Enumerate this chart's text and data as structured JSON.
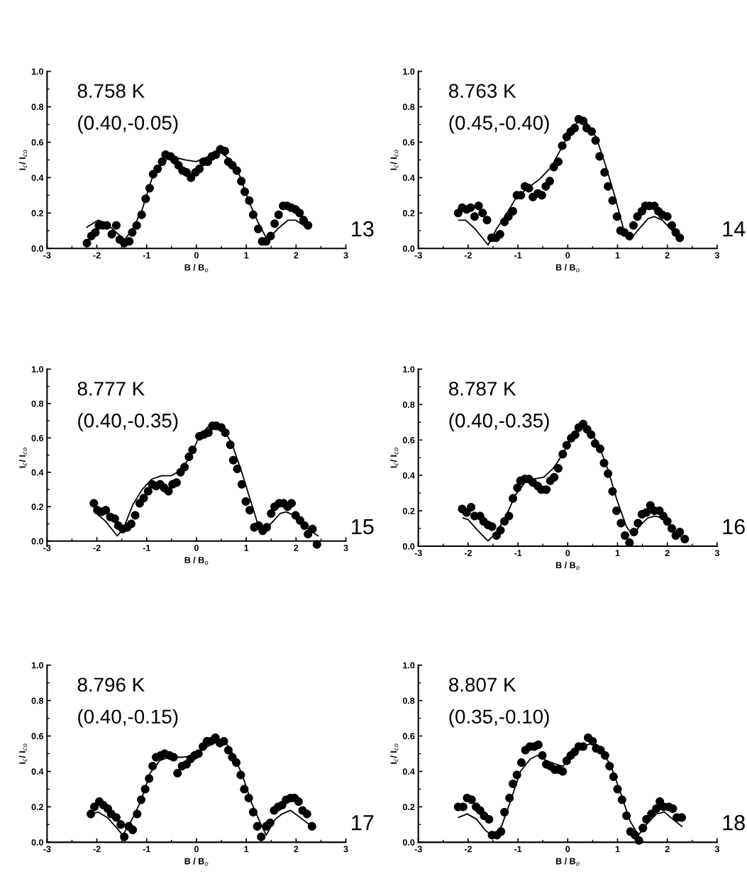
{
  "chart_data": [
    {
      "type": "scatter",
      "title": "8.758 K",
      "subtitle": "(0.40,-0.05)",
      "annotations": [
        "13"
      ],
      "xlabel": "B / B$_{o}$",
      "ylabel": "I$_{c}$/ I$_{co}$",
      "xlim": [
        -3,
        3
      ],
      "xticks": [
        -3,
        -2,
        -1,
        0,
        1,
        2,
        3
      ],
      "ylim": [
        0,
        1.0
      ],
      "yticks": [
        {
          "value": 0,
          "label": "0.0"
        },
        {
          "value": 0.2,
          "label": "0.2"
        },
        {
          "value": 0.4,
          "label": "0.4"
        },
        {
          "value": 0.6,
          "label": "0.6"
        },
        {
          "value": 0.8,
          "label": "0.8"
        },
        {
          "value": 1.0,
          "label": "1.0"
        }
      ],
      "grid": false,
      "legend": false,
      "series": [
        {
          "marker": "circle",
          "color": "#000000",
          "x": [
            -2.2,
            -2.11,
            -2.03,
            -1.96,
            -1.88,
            -1.8,
            -1.7,
            -1.61,
            -1.54,
            -1.45,
            -1.35,
            -1.29,
            -1.2,
            -1.1,
            -1.02,
            -0.94,
            -0.87,
            -0.78,
            -0.69,
            -0.62,
            -0.52,
            -0.44,
            -0.36,
            -0.28,
            -0.2,
            -0.11,
            -0.02,
            0.06,
            0.14,
            0.23,
            0.31,
            0.39,
            0.48,
            0.57,
            0.64,
            0.72,
            0.81,
            0.9,
            0.97,
            1.06,
            1.14,
            1.24,
            1.32,
            1.4,
            1.49,
            1.57,
            1.65,
            1.74,
            1.82,
            1.9,
            1.99,
            2.07,
            2.15,
            2.24
          ],
          "values": [
            0.03,
            0.07,
            0.09,
            0.13,
            0.13,
            0.13,
            0.08,
            0.13,
            0.05,
            0.03,
            0.04,
            0.09,
            0.13,
            0.19,
            0.28,
            0.34,
            0.42,
            0.45,
            0.49,
            0.53,
            0.52,
            0.5,
            0.47,
            0.44,
            0.43,
            0.4,
            0.43,
            0.45,
            0.49,
            0.49,
            0.52,
            0.53,
            0.56,
            0.55,
            0.49,
            0.47,
            0.44,
            0.38,
            0.32,
            0.27,
            0.19,
            0.11,
            0.04,
            0.04,
            0.07,
            0.14,
            0.19,
            0.24,
            0.24,
            0.23,
            0.22,
            0.2,
            0.16,
            0.13
          ]
        },
        {
          "type": "line",
          "line_style": "solid",
          "color": "#000000",
          "x": [
            -2.2,
            -1.97,
            -1.8,
            -1.61,
            -1.44,
            -1.28,
            -1.09,
            -0.9,
            -0.7,
            -0.51,
            -0.23,
            -0.01,
            0.25,
            0.46,
            0.68,
            0.87,
            1.06,
            1.25,
            1.42,
            1.63,
            1.84,
            1.99,
            2.15
          ],
          "values": [
            0.12,
            0.16,
            0.14,
            0.09,
            0.05,
            0.11,
            0.22,
            0.39,
            0.48,
            0.52,
            0.5,
            0.49,
            0.52,
            0.55,
            0.5,
            0.41,
            0.26,
            0.14,
            0.05,
            0.11,
            0.16,
            0.16,
            0.13
          ]
        }
      ]
    },
    {
      "type": "scatter",
      "title": "8.763 K",
      "subtitle": "(0.45,-0.40)",
      "annotations": [
        "14"
      ],
      "xlabel": "B / B$_{o}$",
      "ylabel": "I$_{c}$/ I$_{co}$",
      "xlim": [
        -3,
        3
      ],
      "xticks": [
        -3,
        -2,
        -1,
        0,
        1,
        2,
        3
      ],
      "ylim": [
        0,
        1.0
      ],
      "yticks": [
        {
          "value": 0,
          "label": "0.0"
        },
        {
          "value": 0.2,
          "label": "0.2"
        },
        {
          "value": 0.4,
          "label": "0.4"
        },
        {
          "value": 0.6,
          "label": "0.6"
        },
        {
          "value": 0.8,
          "label": "0.8"
        },
        {
          "value": 1.0,
          "label": "1.0"
        }
      ],
      "grid": false,
      "legend": false,
      "series": [
        {
          "marker": "circle",
          "color": "#000000",
          "x": [
            -2.2,
            -2.12,
            -2.03,
            -1.95,
            -1.87,
            -1.79,
            -1.71,
            -1.62,
            -1.53,
            -1.44,
            -1.36,
            -1.27,
            -1.19,
            -1.1,
            -1.02,
            -0.94,
            -0.86,
            -0.78,
            -0.7,
            -0.6,
            -0.52,
            -0.44,
            -0.36,
            -0.28,
            -0.19,
            -0.11,
            -0.02,
            0.06,
            0.14,
            0.22,
            0.31,
            0.38,
            0.48,
            0.56,
            0.64,
            0.74,
            0.81,
            0.9,
            0.99,
            1.06,
            1.14,
            1.24,
            1.32,
            1.4,
            1.49,
            1.56,
            1.64,
            1.74,
            1.82,
            1.9,
            2.0,
            2.09,
            2.17,
            2.25
          ],
          "values": [
            0.2,
            0.23,
            0.22,
            0.23,
            0.18,
            0.24,
            0.2,
            0.16,
            0.06,
            0.06,
            0.08,
            0.15,
            0.18,
            0.21,
            0.3,
            0.3,
            0.35,
            0.34,
            0.29,
            0.31,
            0.3,
            0.35,
            0.38,
            0.46,
            0.49,
            0.58,
            0.63,
            0.66,
            0.68,
            0.73,
            0.72,
            0.68,
            0.66,
            0.61,
            0.52,
            0.43,
            0.35,
            0.27,
            0.18,
            0.1,
            0.09,
            0.07,
            0.13,
            0.18,
            0.21,
            0.24,
            0.24,
            0.24,
            0.21,
            0.19,
            0.18,
            0.13,
            0.09,
            0.06
          ]
        },
        {
          "type": "line",
          "line_style": "solid",
          "color": "#000000",
          "x": [
            -2.19,
            -2.05,
            -1.86,
            -1.6,
            -1.43,
            -1.24,
            -1.05,
            -0.81,
            -0.57,
            -0.33,
            -0.14,
            0.05,
            0.21,
            0.38,
            0.57,
            0.76,
            0.95,
            1.12,
            1.26,
            1.43,
            1.62,
            1.74,
            1.9,
            2.1,
            2.26
          ],
          "values": [
            0.16,
            0.16,
            0.11,
            0.02,
            0.11,
            0.19,
            0.28,
            0.34,
            0.39,
            0.46,
            0.56,
            0.66,
            0.72,
            0.71,
            0.63,
            0.47,
            0.29,
            0.11,
            0.05,
            0.11,
            0.17,
            0.18,
            0.16,
            0.1,
            0.06
          ]
        }
      ]
    },
    {
      "type": "scatter",
      "title": "8.777 K",
      "subtitle": "(0.40,-0.35)",
      "annotations": [
        "15"
      ],
      "xlabel": "B / B$_{o}$",
      "ylabel": "I$_{c}$/ I$_{co}$",
      "xlim": [
        -3,
        3
      ],
      "xticks": [
        -3,
        -2,
        -1,
        0,
        1,
        2,
        3
      ],
      "ylim": [
        -0.03,
        1.0
      ],
      "yticks": [
        {
          "value": 0,
          "label": "0.0"
        },
        {
          "value": 0.2,
          "label": "0.2"
        },
        {
          "value": 0.4,
          "label": "0.4"
        },
        {
          "value": 0.6,
          "label": "0.6"
        },
        {
          "value": 0.8,
          "label": "0.8"
        },
        {
          "value": 1.0,
          "label": "1.0"
        }
      ],
      "grid": false,
      "legend": false,
      "series": [
        {
          "marker": "circle",
          "color": "#000000",
          "x": [
            -2.06,
            -1.99,
            -1.9,
            -1.82,
            -1.73,
            -1.64,
            -1.57,
            -1.48,
            -1.39,
            -1.31,
            -1.23,
            -1.14,
            -1.06,
            -0.97,
            -0.89,
            -0.81,
            -0.73,
            -0.65,
            -0.56,
            -0.48,
            -0.4,
            -0.32,
            -0.24,
            -0.15,
            -0.08,
            0.06,
            0.15,
            0.24,
            0.32,
            0.4,
            0.5,
            0.58,
            0.68,
            0.74,
            0.82,
            0.91,
            0.99,
            1.07,
            1.16,
            1.25,
            1.33,
            1.41,
            1.5,
            1.57,
            1.66,
            1.75,
            1.83,
            1.91,
            1.99,
            2.08,
            2.17,
            2.24,
            2.33,
            2.42
          ],
          "values": [
            0.22,
            0.18,
            0.17,
            0.18,
            0.14,
            0.13,
            0.09,
            0.07,
            0.08,
            0.1,
            0.15,
            0.22,
            0.25,
            0.29,
            0.33,
            0.32,
            0.33,
            0.31,
            0.29,
            0.33,
            0.34,
            0.4,
            0.43,
            0.49,
            0.53,
            0.61,
            0.62,
            0.63,
            0.67,
            0.67,
            0.66,
            0.63,
            0.56,
            0.47,
            0.42,
            0.33,
            0.23,
            0.18,
            0.08,
            0.09,
            0.06,
            0.08,
            0.16,
            0.2,
            0.22,
            0.22,
            0.2,
            0.22,
            0.15,
            0.12,
            0.09,
            0.04,
            0.07,
            -0.02
          ]
        },
        {
          "type": "line",
          "line_style": "solid",
          "color": "#000000",
          "x": [
            -2.01,
            -1.84,
            -1.59,
            -1.47,
            -1.28,
            -1.09,
            -0.9,
            -0.7,
            -0.51,
            -0.32,
            -0.13,
            0.06,
            0.25,
            0.34,
            0.53,
            0.72,
            0.91,
            1.06,
            1.22,
            1.34,
            1.49,
            1.68,
            1.8,
            1.96,
            2.15,
            2.44
          ],
          "values": [
            0.16,
            0.12,
            0.03,
            0.07,
            0.21,
            0.3,
            0.36,
            0.38,
            0.38,
            0.41,
            0.49,
            0.61,
            0.67,
            0.69,
            0.66,
            0.56,
            0.4,
            0.26,
            0.11,
            0.06,
            0.1,
            0.16,
            0.17,
            0.15,
            0.09,
            0.03
          ]
        }
      ]
    },
    {
      "type": "scatter",
      "title": "8.787 K",
      "subtitle": "(0.40,-0.35)",
      "annotations": [
        "16"
      ],
      "xlabel": "B / B$_{o}$",
      "ylabel": "I$_{c}$/ I$_{co}$",
      "xlim": [
        -3,
        3
      ],
      "xticks": [
        -3,
        -2,
        -1,
        0,
        1,
        2,
        3
      ],
      "ylim": [
        0,
        1.0
      ],
      "yticks": [
        {
          "value": 0,
          "label": "0.0"
        },
        {
          "value": 0.2,
          "label": "0.2"
        },
        {
          "value": 0.4,
          "label": "0.4"
        },
        {
          "value": 0.6,
          "label": "0.6"
        },
        {
          "value": 0.8,
          "label": "0.8"
        },
        {
          "value": 1.0,
          "label": "1.0"
        }
      ],
      "grid": false,
      "legend": false,
      "series": [
        {
          "marker": "circle",
          "color": "#000000",
          "x": [
            -2.12,
            -2.03,
            -1.94,
            -1.87,
            -1.76,
            -1.69,
            -1.6,
            -1.52,
            -1.43,
            -1.35,
            -1.27,
            -1.18,
            -1.1,
            -1.01,
            -0.95,
            -0.86,
            -0.78,
            -0.7,
            -0.6,
            -0.53,
            -0.43,
            -0.35,
            -0.27,
            -0.19,
            -0.1,
            -0.02,
            0.07,
            0.15,
            0.22,
            0.31,
            0.39,
            0.47,
            0.55,
            0.65,
            0.73,
            0.81,
            0.9,
            0.98,
            1.07,
            1.15,
            1.24,
            1.33,
            1.41,
            1.49,
            1.58,
            1.66,
            1.74,
            1.84,
            1.92,
            2.0,
            2.09,
            2.17,
            2.25,
            2.35
          ],
          "values": [
            0.21,
            0.19,
            0.22,
            0.17,
            0.17,
            0.14,
            0.12,
            0.11,
            0.06,
            0.09,
            0.14,
            0.17,
            0.27,
            0.33,
            0.37,
            0.38,
            0.38,
            0.36,
            0.34,
            0.32,
            0.32,
            0.37,
            0.39,
            0.44,
            0.52,
            0.57,
            0.61,
            0.63,
            0.67,
            0.69,
            0.66,
            0.63,
            0.58,
            0.55,
            0.47,
            0.41,
            0.31,
            0.2,
            0.13,
            0.06,
            0.02,
            0.08,
            0.13,
            0.18,
            0.19,
            0.23,
            0.2,
            0.2,
            0.17,
            0.14,
            0.1,
            0.06,
            0.08,
            0.04
          ]
        },
        {
          "type": "line",
          "line_style": "solid",
          "color": "#000000",
          "x": [
            -2.1,
            -2.0,
            -1.81,
            -1.6,
            -1.43,
            -1.24,
            -1.05,
            -0.86,
            -0.67,
            -0.48,
            -0.29,
            -0.1,
            0.09,
            0.26,
            0.42,
            0.61,
            0.8,
            0.99,
            1.18,
            1.31,
            1.46,
            1.61,
            1.75,
            1.92,
            2.09,
            2.32
          ],
          "values": [
            0.16,
            0.15,
            0.09,
            0.03,
            0.08,
            0.17,
            0.29,
            0.36,
            0.38,
            0.39,
            0.44,
            0.52,
            0.62,
            0.68,
            0.66,
            0.58,
            0.44,
            0.26,
            0.11,
            0.06,
            0.12,
            0.16,
            0.17,
            0.16,
            0.1,
            0.04
          ]
        }
      ]
    },
    {
      "type": "scatter",
      "title": "8.796 K",
      "subtitle": "(0.40,-0.15)",
      "annotations": [
        "17"
      ],
      "xlabel": "B / B$_{o}$",
      "ylabel": "I$_{c}$/ I$_{co}$",
      "xlim": [
        -3,
        3
      ],
      "xticks": [
        -3,
        -2,
        -1,
        0,
        1,
        2,
        3
      ],
      "ylim": [
        0,
        1.0
      ],
      "yticks": [
        {
          "value": 0,
          "label": "0.0"
        },
        {
          "value": 0.2,
          "label": "0.2"
        },
        {
          "value": 0.4,
          "label": "0.4"
        },
        {
          "value": 0.6,
          "label": "0.6"
        },
        {
          "value": 0.8,
          "label": "0.8"
        },
        {
          "value": 1.0,
          "label": "1.0"
        }
      ],
      "grid": false,
      "legend": false,
      "series": [
        {
          "marker": "circle",
          "color": "#000000",
          "x": [
            -2.12,
            -2.05,
            -1.95,
            -1.87,
            -1.78,
            -1.71,
            -1.61,
            -1.52,
            -1.45,
            -1.36,
            -1.28,
            -1.19,
            -1.11,
            -1.03,
            -0.95,
            -0.88,
            -0.81,
            -0.72,
            -0.64,
            -0.54,
            -0.46,
            -0.38,
            -0.29,
            -0.2,
            -0.12,
            -0.04,
            0.04,
            0.13,
            0.21,
            0.29,
            0.38,
            0.47,
            0.55,
            0.64,
            0.72,
            0.8,
            0.89,
            0.96,
            1.05,
            1.14,
            1.22,
            1.3,
            1.4,
            1.48,
            1.56,
            1.64,
            1.72,
            1.8,
            1.89,
            1.97,
            2.05,
            2.13,
            2.22,
            2.32
          ],
          "values": [
            0.16,
            0.2,
            0.23,
            0.21,
            0.19,
            0.16,
            0.14,
            0.1,
            0.03,
            0.09,
            0.07,
            0.16,
            0.24,
            0.3,
            0.36,
            0.43,
            0.48,
            0.49,
            0.5,
            0.49,
            0.48,
            0.39,
            0.43,
            0.44,
            0.47,
            0.49,
            0.5,
            0.54,
            0.57,
            0.57,
            0.59,
            0.56,
            0.57,
            0.52,
            0.48,
            0.45,
            0.38,
            0.3,
            0.25,
            0.17,
            0.09,
            0.03,
            0.09,
            0.11,
            0.18,
            0.2,
            0.21,
            0.24,
            0.25,
            0.25,
            0.23,
            0.18,
            0.16,
            0.09
          ]
        },
        {
          "type": "line",
          "line_style": "solid",
          "color": "#000000",
          "x": [
            -2.12,
            -1.97,
            -1.79,
            -1.6,
            -1.48,
            -1.31,
            -1.12,
            -0.93,
            -0.74,
            -0.55,
            -0.27,
            -0.08,
            0.16,
            0.35,
            0.57,
            0.73,
            0.92,
            1.11,
            1.28,
            1.4,
            1.58,
            1.72,
            1.89,
            2.08,
            2.27
          ],
          "values": [
            0.16,
            0.17,
            0.14,
            0.08,
            0.04,
            0.12,
            0.23,
            0.39,
            0.46,
            0.48,
            0.48,
            0.49,
            0.53,
            0.56,
            0.57,
            0.5,
            0.38,
            0.22,
            0.11,
            0.04,
            0.13,
            0.16,
            0.18,
            0.14,
            0.1
          ]
        }
      ]
    },
    {
      "type": "scatter",
      "title": "8.807 K",
      "subtitle": "(0.35,-0.10)",
      "annotations": [
        "18"
      ],
      "xlabel": "B / B$_{o}$",
      "ylabel": "I$_{c}$/ I$_{co}$",
      "xlim": [
        -3,
        3
      ],
      "xticks": [
        -3,
        -2,
        -1,
        0,
        1,
        2,
        3
      ],
      "ylim": [
        0,
        1.0
      ],
      "yticks": [
        {
          "value": 0,
          "label": "0.0"
        },
        {
          "value": 0.2,
          "label": "0.2"
        },
        {
          "value": 0.4,
          "label": "0.4"
        },
        {
          "value": 0.6,
          "label": "0.6"
        },
        {
          "value": 0.8,
          "label": "0.8"
        },
        {
          "value": 1.0,
          "label": "1.0"
        }
      ],
      "grid": false,
      "legend": false,
      "series": [
        {
          "marker": "circle",
          "color": "#000000",
          "x": [
            -2.2,
            -2.1,
            -2.02,
            -1.93,
            -1.84,
            -1.76,
            -1.68,
            -1.58,
            -1.52,
            -1.42,
            -1.34,
            -1.27,
            -1.17,
            -1.1,
            -1.02,
            -0.93,
            -0.85,
            -0.76,
            -0.67,
            -0.59,
            -0.51,
            -0.43,
            -0.35,
            -0.26,
            -0.18,
            -0.1,
            -0.02,
            0.06,
            0.14,
            0.22,
            0.31,
            0.41,
            0.5,
            0.57,
            0.66,
            0.75,
            0.84,
            0.92,
            1.0,
            1.09,
            1.18,
            1.26,
            1.35,
            1.43,
            1.51,
            1.58,
            1.68,
            1.78,
            1.85,
            1.93,
            2.03,
            2.11,
            2.19,
            2.29
          ],
          "values": [
            0.2,
            0.2,
            0.25,
            0.24,
            0.2,
            0.18,
            0.15,
            0.13,
            0.04,
            0.04,
            0.06,
            0.17,
            0.25,
            0.33,
            0.38,
            0.45,
            0.52,
            0.54,
            0.54,
            0.55,
            0.49,
            0.44,
            0.43,
            0.41,
            0.41,
            0.4,
            0.46,
            0.49,
            0.51,
            0.54,
            0.54,
            0.59,
            0.57,
            0.53,
            0.52,
            0.49,
            0.43,
            0.37,
            0.3,
            0.24,
            0.15,
            0.06,
            0.04,
            0.01,
            0.08,
            0.13,
            0.16,
            0.19,
            0.23,
            0.2,
            0.2,
            0.19,
            0.14,
            0.14
          ]
        },
        {
          "type": "line",
          "line_style": "solid",
          "color": "#000000",
          "x": [
            -2.19,
            -2.02,
            -1.83,
            -1.66,
            -1.5,
            -1.33,
            -1.14,
            -0.95,
            -0.75,
            -0.61,
            -0.42,
            -0.23,
            -0.09,
            0.11,
            0.3,
            0.49,
            0.68,
            0.87,
            1.06,
            1.25,
            1.42,
            1.58,
            1.78,
            1.94,
            2.11,
            2.29
          ],
          "values": [
            0.14,
            0.16,
            0.13,
            0.07,
            0.03,
            0.09,
            0.24,
            0.4,
            0.47,
            0.49,
            0.46,
            0.44,
            0.43,
            0.5,
            0.54,
            0.56,
            0.52,
            0.43,
            0.28,
            0.12,
            0.04,
            0.1,
            0.16,
            0.17,
            0.13,
            0.09
          ]
        }
      ]
    }
  ]
}
